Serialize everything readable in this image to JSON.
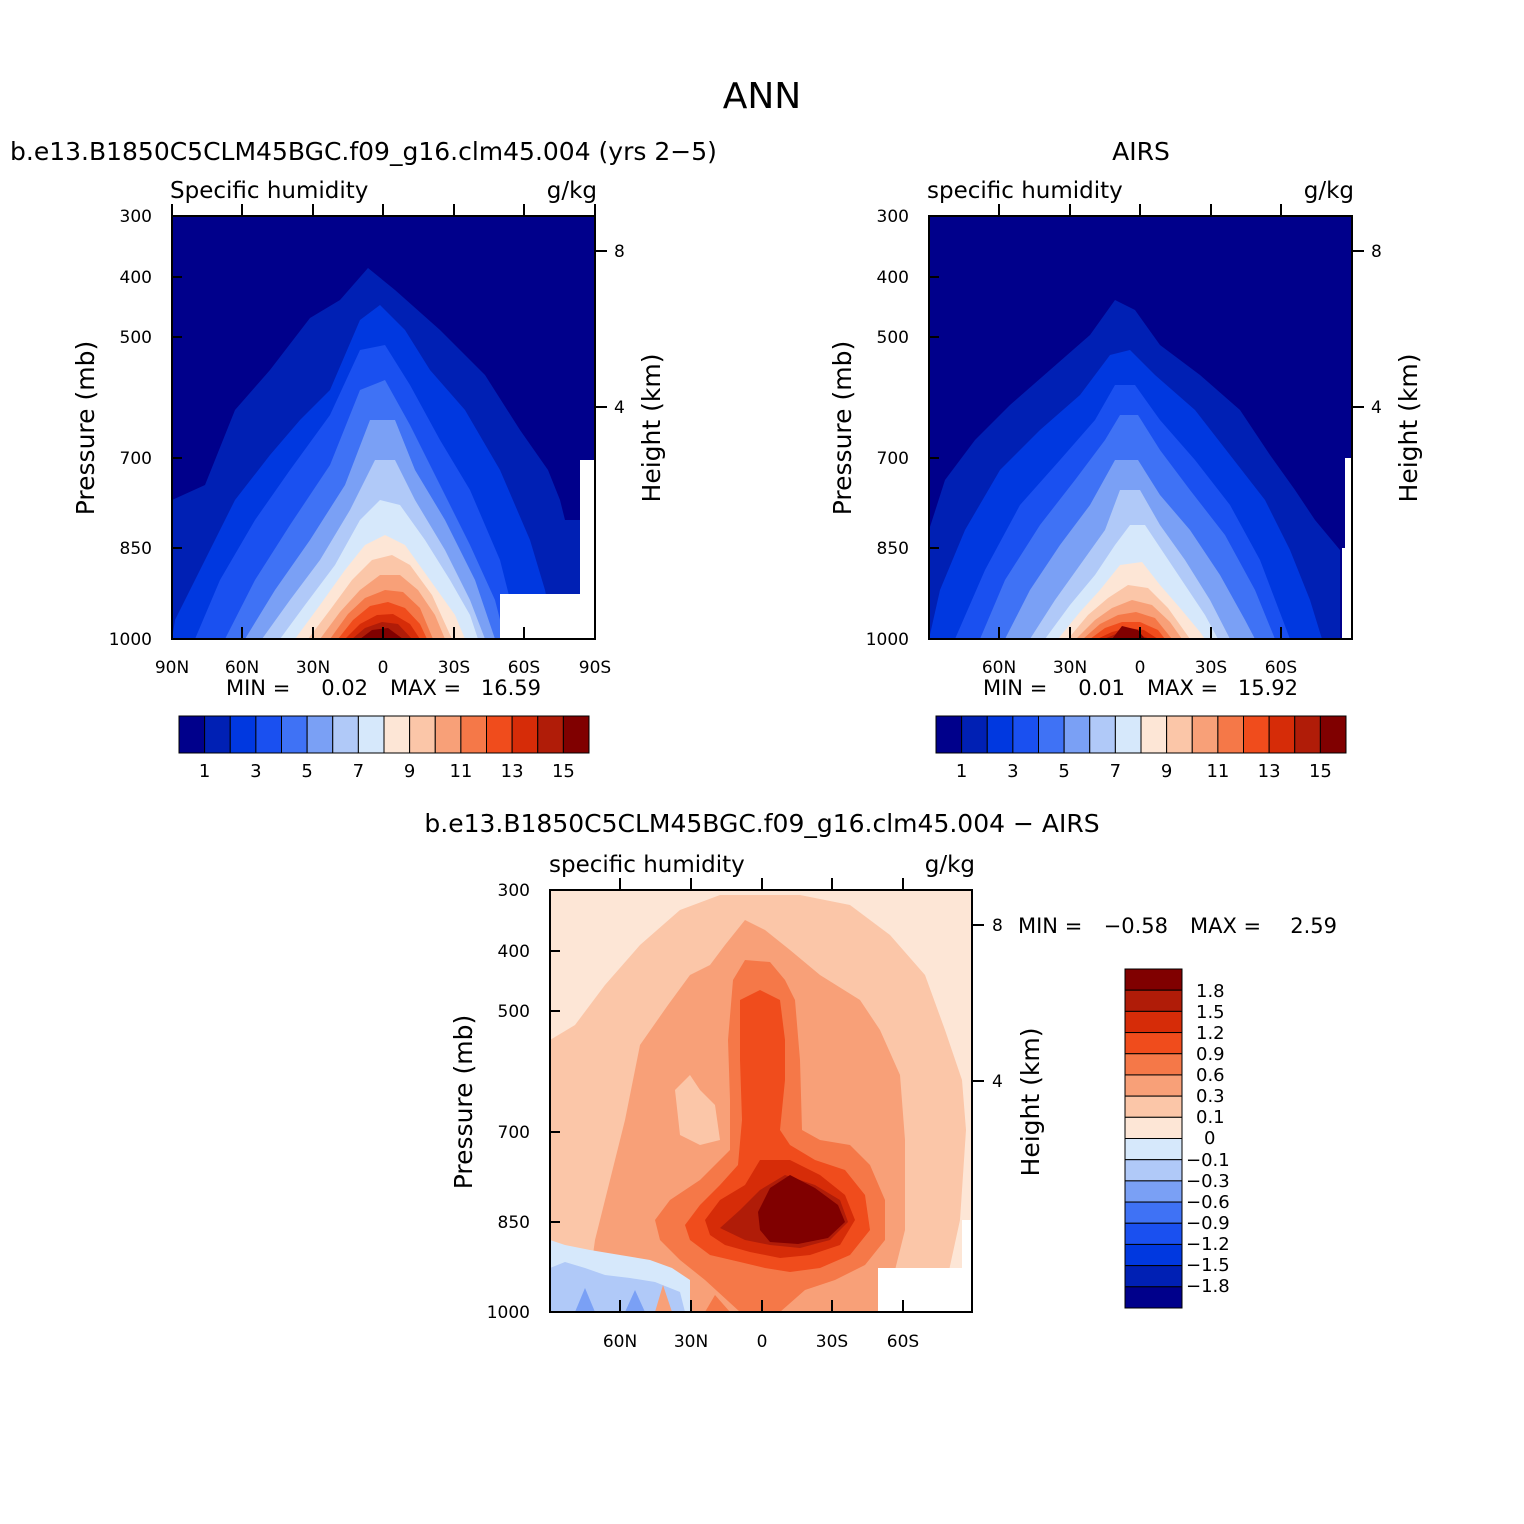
{
  "figure": {
    "title": "ANN"
  },
  "chart_data": [
    {
      "type": "contour",
      "case_title": "b.e13.B1850C5CLM45BGC.f09_g16.clm45.004 (yrs 2−5)",
      "variable": "Specific humidity",
      "units": "g/kg",
      "ylabel": "Pressure (mb)",
      "ylabel_right": "Height (km)",
      "yticks": [
        "300",
        "400",
        "500",
        "700",
        "850",
        "1000"
      ],
      "yticks_right": [
        "8",
        "4"
      ],
      "xticks": [
        "90N",
        "60N",
        "30N",
        "0",
        "30S",
        "60S",
        "90S"
      ],
      "min_label": "MIN =",
      "min_value": "0.02",
      "max_label": "MAX =",
      "max_value": "16.59",
      "colorbar_labels": [
        "1",
        "3",
        "5",
        "7",
        "9",
        "11",
        "13",
        "15"
      ],
      "colorbar_colors": [
        "#00008b",
        "#0020b4",
        "#0038e0",
        "#1a50f0",
        "#3f72f5",
        "#7aa0f5",
        "#b0c9f8",
        "#d6e8fb",
        "#fde6d6",
        "#fbc6a8",
        "#f8a078",
        "#f57848",
        "#f04c1c",
        "#d62c08",
        "#b01c08",
        "#800000"
      ],
      "approx_field": {
        "max_near_latitude": "0",
        "max_near_pressure": "1000",
        "peak_value": 16.59
      }
    },
    {
      "type": "contour",
      "case_title": "AIRS",
      "variable": "specific humidity",
      "units": "g/kg",
      "ylabel": "Pressure (mb)",
      "ylabel_right": "Height (km)",
      "yticks": [
        "300",
        "400",
        "500",
        "700",
        "850",
        "1000"
      ],
      "yticks_right": [
        "8",
        "4"
      ],
      "xticks": [
        "60N",
        "30N",
        "0",
        "30S",
        "60S"
      ],
      "min_label": "MIN =",
      "min_value": "0.01",
      "max_label": "MAX =",
      "max_value": "15.92",
      "colorbar_labels": [
        "1",
        "3",
        "5",
        "7",
        "9",
        "11",
        "13",
        "15"
      ],
      "colorbar_colors": [
        "#00008b",
        "#0020b4",
        "#0038e0",
        "#1a50f0",
        "#3f72f5",
        "#7aa0f5",
        "#b0c9f8",
        "#d6e8fb",
        "#fde6d6",
        "#fbc6a8",
        "#f8a078",
        "#f57848",
        "#f04c1c",
        "#d62c08",
        "#b01c08",
        "#800000"
      ],
      "approx_field": {
        "max_near_latitude": "0",
        "max_near_pressure": "1000",
        "peak_value": 15.92
      }
    },
    {
      "type": "contour",
      "case_title": "b.e13.B1850C5CLM45BGC.f09_g16.clm45.004 − AIRS",
      "variable": "specific humidity",
      "units": "g/kg",
      "ylabel": "Pressure (mb)",
      "ylabel_right": "Height (km)",
      "yticks": [
        "300",
        "400",
        "500",
        "700",
        "850",
        "1000"
      ],
      "yticks_right": [
        "8",
        "4"
      ],
      "xticks": [
        "60N",
        "30N",
        "0",
        "30S",
        "60S"
      ],
      "min_label": "MIN =",
      "min_value": "−0.58",
      "max_label": "MAX =",
      "max_value": "2.59",
      "colorbar_labels": [
        "1.8",
        "1.5",
        "1.2",
        "0.9",
        "0.6",
        "0.3",
        "0.1",
        "0",
        "−0.1",
        "−0.3",
        "−0.6",
        "−0.9",
        "−1.2",
        "−1.5",
        "−1.8"
      ],
      "colorbar_colors": [
        "#800000",
        "#b01c08",
        "#d62c08",
        "#f04c1c",
        "#f57848",
        "#f8a078",
        "#fbc6a8",
        "#fde6d6",
        "#d6e8fb",
        "#b0c9f8",
        "#7aa0f5",
        "#3f72f5",
        "#1a50f0",
        "#0038e0",
        "#0020b4",
        "#00008b"
      ],
      "approx_field": {
        "max_near_latitude": "10S",
        "max_near_pressure": "850",
        "peak_value": 2.59
      }
    }
  ]
}
